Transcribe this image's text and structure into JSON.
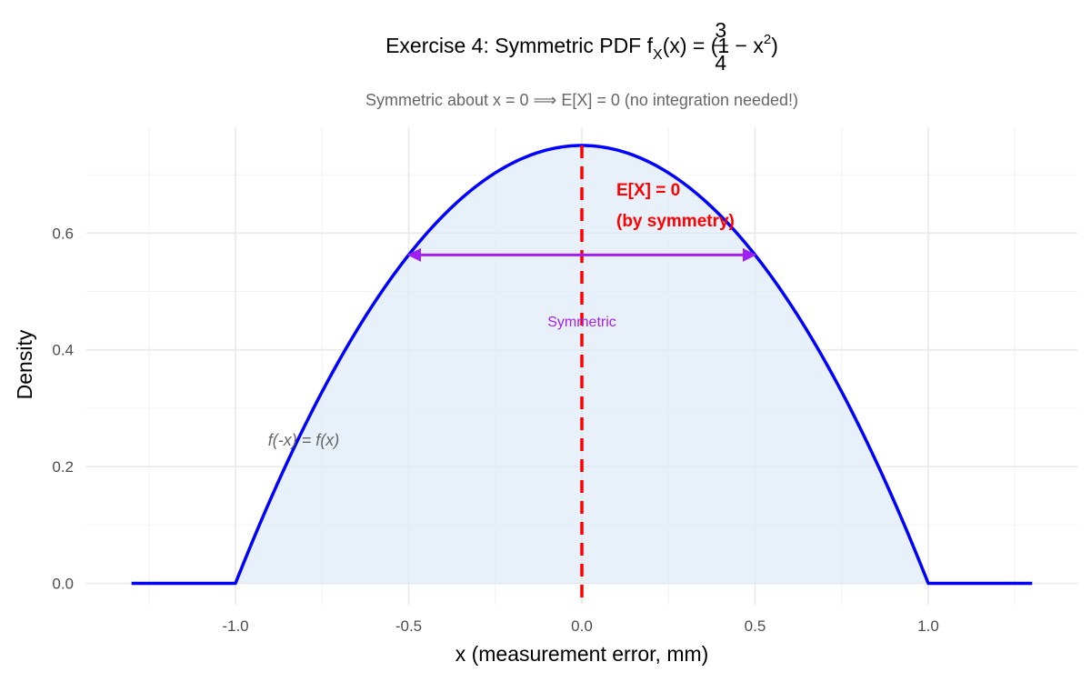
{
  "chart_data": {
    "type": "area",
    "title": {
      "prefix": "Exercise 4: Symmetric PDF f",
      "sub": "X",
      "mid": "(x) = ",
      "frac_num": "3",
      "frac_den": "4",
      "tail": "(1 − x",
      "sup": "2",
      "close": ")"
    },
    "subtitle": "Symmetric about x = 0 ⟹ E[X] = 0 (no integration needed!)",
    "xlabel": "x (measurement error, mm)",
    "ylabel": "Density",
    "xlim": [
      -1.3,
      1.3
    ],
    "ylim": [
      0,
      0.75
    ],
    "xticks": [
      -1.0,
      -0.5,
      0.0,
      0.5,
      1.0
    ],
    "xtick_labels": [
      "-1.0",
      "-0.5",
      "0.0",
      "0.5",
      "1.0"
    ],
    "yticks": [
      0.0,
      0.2,
      0.4,
      0.6
    ],
    "ytick_labels": [
      "0.0",
      "0.2",
      "0.4",
      "0.6"
    ],
    "grid": true,
    "series": [
      {
        "function": "f(x) = 0.75 * (1 - x^2) for -1 <= x <= 1, else 0",
        "x_range": [
          -1.3,
          1.3
        ],
        "color": "#0000ff",
        "fill": "#dbeaf6"
      }
    ],
    "mean_line": {
      "x": 0.0,
      "color": "#ff0000",
      "style": "dashed"
    },
    "symmetry_arrow": {
      "x_from": -0.5,
      "x_to": 0.5,
      "y": 0.5625,
      "color": "#a020f0"
    },
    "annotations": {
      "mean_line1": "E[X] = 0",
      "mean_line2": "(by symmetry)",
      "symmetric": "Symmetric",
      "symmetry_eq": "f(-x) = f(x)"
    }
  }
}
